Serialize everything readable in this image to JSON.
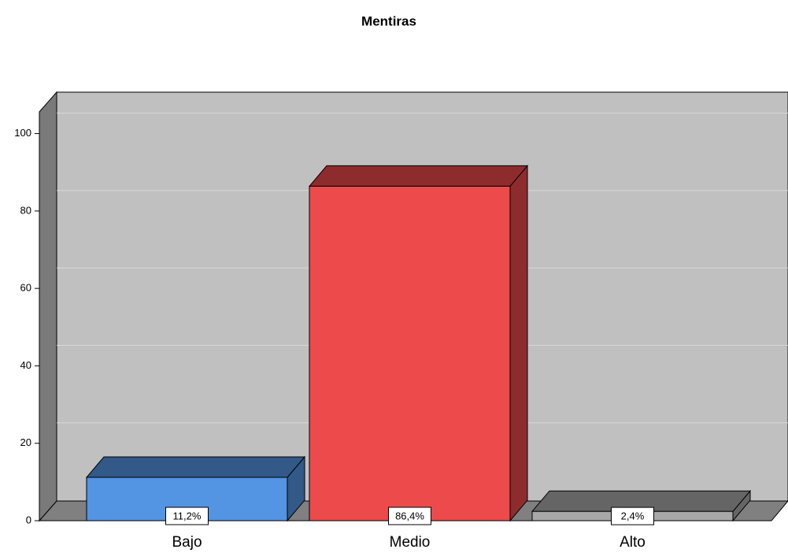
{
  "chart_data": {
    "type": "bar3d",
    "title": "Mentiras",
    "categories": [
      "Bajo",
      "Medio",
      "Alto"
    ],
    "values": [
      11.2,
      86.4,
      2.4
    ],
    "value_labels": [
      "11,2%",
      "86,4%",
      "2,4%"
    ],
    "colors": [
      "#5394e3",
      "#ec4a4b",
      "#a8a8a8"
    ],
    "ylim": [
      0,
      105
    ],
    "yticks": [
      0,
      20,
      40,
      60,
      80,
      100
    ],
    "grid": true
  }
}
